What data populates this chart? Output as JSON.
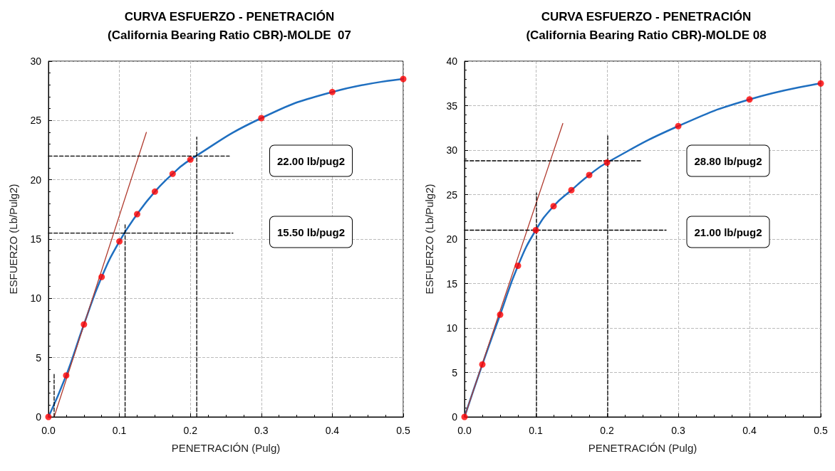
{
  "chart_data": [
    {
      "type": "line",
      "title": "CURVA ESFUERZO - PENETRACIÓN",
      "subtitle": "(California Bearing Ratio CBR)-MOLDE  07",
      "xlabel": "PENETRACIÓN (Pulg)",
      "ylabel": "ESFUERZO (Lb/Pulg2)",
      "xlim": [
        0,
        0.5
      ],
      "ylim": [
        0,
        30
      ],
      "xticks": [
        {
          "value": 0,
          "label": "0.0"
        },
        {
          "value": 0.1,
          "label": "0.1"
        },
        {
          "value": 0.2,
          "label": "0.2"
        },
        {
          "value": 0.3,
          "label": "0.3"
        },
        {
          "value": 0.4,
          "label": "0.4"
        },
        {
          "value": 0.5,
          "label": "0.5"
        }
      ],
      "yticks": [
        0,
        5,
        10,
        15,
        20,
        25,
        30
      ],
      "grid": true,
      "series": [
        {
          "color": "#1f6fc0",
          "marker": "none",
          "line_style": "solid",
          "x": [
            0,
            0.025,
            0.05,
            0.075,
            0.1,
            0.125,
            0.15,
            0.175,
            0.2,
            0.3,
            0.4,
            0.5
          ],
          "values": [
            0,
            3.5,
            7.8,
            11.8,
            14.8,
            17.1,
            19.0,
            20.5,
            21.7,
            25.2,
            27.4,
            28.5
          ]
        },
        {
          "type": "scatter",
          "color": "#ff0000",
          "marker": "circle",
          "x": [
            0,
            0.025,
            0.05,
            0.075,
            0.1,
            0.125,
            0.15,
            0.175,
            0.2,
            0.3,
            0.4,
            0.5
          ],
          "values": [
            0,
            3.5,
            7.8,
            11.8,
            14.8,
            17.1,
            19.0,
            20.5,
            21.7,
            25.2,
            27.4,
            28.5
          ]
        },
        {
          "color": "#b03a2e",
          "marker": "none",
          "line_style": "solid",
          "x": [
            0.008,
            0.138
          ],
          "values": [
            0,
            24
          ]
        },
        {
          "color": "#000000",
          "marker": "none",
          "line_style": "dashed",
          "x": [
            0,
            0.255
          ],
          "values": [
            22,
            22
          ]
        },
        {
          "color": "#000000",
          "marker": "none",
          "line_style": "dashed",
          "x": [
            0.209,
            0.209
          ],
          "values": [
            0,
            23.6
          ]
        },
        {
          "color": "#000000",
          "marker": "none",
          "line_style": "dashed",
          "x": [
            0,
            0.26
          ],
          "values": [
            15.5,
            15.5
          ]
        },
        {
          "color": "#000000",
          "marker": "none",
          "line_style": "dashed",
          "x": [
            0.108,
            0.108
          ],
          "values": [
            0,
            16.2
          ]
        },
        {
          "color": "#000000",
          "marker": "none",
          "line_style": "dashed",
          "x": [
            0.008,
            0.008
          ],
          "values": [
            0,
            3.6
          ]
        }
      ],
      "annotations": [
        "22.00 lb/pug2",
        "15.50 lb/pug2"
      ]
    },
    {
      "type": "line",
      "title": "CURVA ESFUERZO - PENETRACIÓN",
      "subtitle": "(California Bearing Ratio CBR)-MOLDE 08",
      "xlabel": "PENETRACIÓN (Pulg)",
      "ylabel": "ESFUERZO (Lb/Pulg2)",
      "xlim": [
        0,
        0.5
      ],
      "ylim": [
        0,
        40
      ],
      "xticks": [
        {
          "value": 0,
          "label": "0.0"
        },
        {
          "value": 0.1,
          "label": "0.1"
        },
        {
          "value": 0.2,
          "label": "0.2"
        },
        {
          "value": 0.3,
          "label": "0.3"
        },
        {
          "value": 0.4,
          "label": "0.4"
        },
        {
          "value": 0.5,
          "label": "0.5"
        }
      ],
      "yticks": [
        0,
        5,
        10,
        15,
        20,
        25,
        30,
        35,
        40
      ],
      "grid": true,
      "series": [
        {
          "color": "#1f6fc0",
          "marker": "none",
          "line_style": "solid",
          "x": [
            0,
            0.025,
            0.05,
            0.075,
            0.1,
            0.125,
            0.15,
            0.175,
            0.2,
            0.3,
            0.4,
            0.5
          ],
          "values": [
            0,
            5.9,
            11.5,
            17.0,
            21.0,
            23.7,
            25.5,
            27.2,
            28.6,
            32.7,
            35.7,
            37.5
          ]
        },
        {
          "type": "scatter",
          "color": "#ff0000",
          "marker": "circle",
          "x": [
            0,
            0.025,
            0.05,
            0.075,
            0.1,
            0.125,
            0.15,
            0.175,
            0.2,
            0.3,
            0.4,
            0.5
          ],
          "values": [
            0,
            5.9,
            11.5,
            17.0,
            21.0,
            23.7,
            25.5,
            27.2,
            28.6,
            32.7,
            35.7,
            37.5
          ]
        },
        {
          "color": "#b03a2e",
          "marker": "none",
          "line_style": "solid",
          "x": [
            0,
            0.138
          ],
          "values": [
            0,
            33
          ]
        },
        {
          "color": "#000000",
          "marker": "none",
          "line_style": "dashed",
          "x": [
            0,
            0.249
          ],
          "values": [
            28.8,
            28.8
          ]
        },
        {
          "color": "#000000",
          "marker": "none",
          "line_style": "dashed",
          "x": [
            0.201,
            0.201
          ],
          "values": [
            0,
            31.6
          ]
        },
        {
          "color": "#000000",
          "marker": "none",
          "line_style": "dashed",
          "x": [
            0,
            0.283
          ],
          "values": [
            21,
            21
          ]
        },
        {
          "color": "#000000",
          "marker": "none",
          "line_style": "dashed",
          "x": [
            0.101,
            0.101
          ],
          "values": [
            0,
            25.2
          ]
        }
      ],
      "annotations": [
        "28.80 lb/pug2",
        "21.00 lb/pug2"
      ]
    }
  ]
}
